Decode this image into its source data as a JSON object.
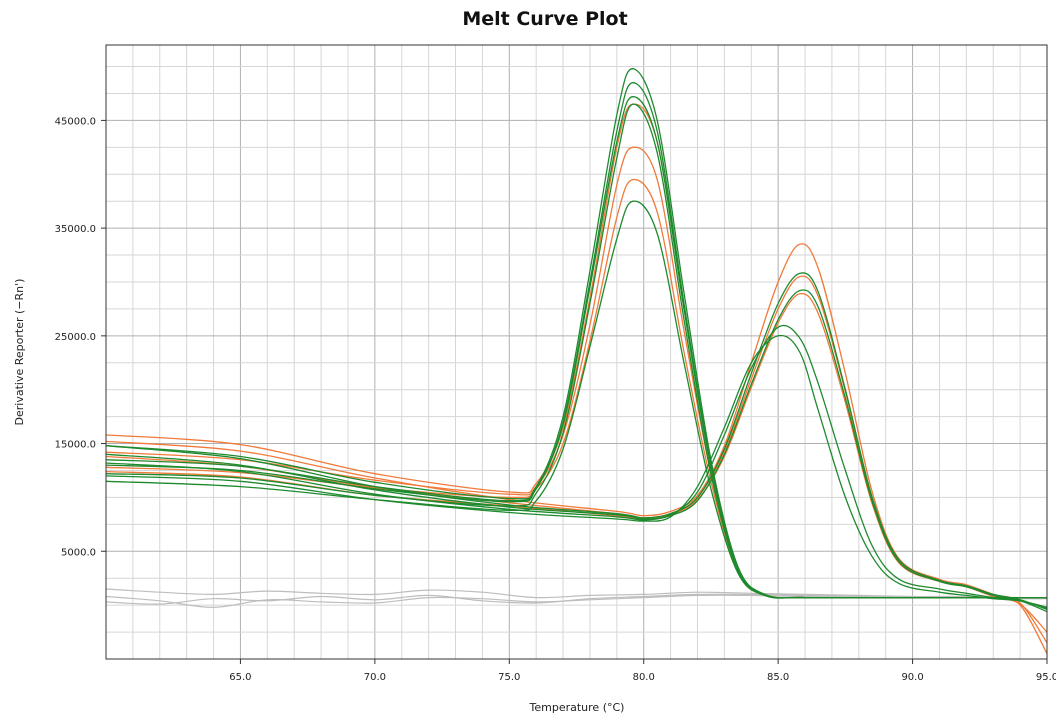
{
  "chart_data": {
    "type": "line",
    "title": "Melt Curve Plot",
    "xlabel": "Temperature (°C)",
    "ylabel": "Derivative Reporter (−Rn')",
    "xlim": [
      60.0,
      95.0
    ],
    "ylim": [
      -5000,
      52000
    ],
    "x_ticks": [
      65.0,
      70.0,
      75.0,
      80.0,
      85.0,
      90.0,
      95.0
    ],
    "x_tick_labels": [
      "65.0",
      "70.0",
      "75.0",
      "80.0",
      "85.0",
      "90.0",
      "95.0"
    ],
    "y_ticks": [
      5000,
      15000,
      25000,
      35000,
      45000
    ],
    "y_tick_labels": [
      "5000.0",
      "15000.0",
      "25000.0",
      "35000.0",
      "45000.0"
    ],
    "grid": true,
    "colors": {
      "green": "#1e8a2e",
      "orange": "#f07a3a",
      "gray": "#bdbdbd"
    },
    "series": [
      {
        "color": "green",
        "x": [
          60,
          65,
          70,
          75,
          76,
          77,
          78,
          79,
          79.6,
          80.5,
          81.5,
          82.5,
          83.5,
          84.5,
          86,
          90,
          93,
          94,
          95
        ],
        "values": [
          13000,
          12500,
          10800,
          9600,
          10800,
          17000,
          30000,
          44000,
          48500,
          44000,
          28000,
          13000,
          3500,
          1000,
          700,
          700,
          700,
          700,
          700
        ]
      },
      {
        "color": "green",
        "x": [
          60,
          65,
          70,
          75,
          76,
          77,
          78,
          79,
          79.6,
          80.5,
          81.5,
          82.5,
          83.5,
          84.5,
          86,
          90,
          93,
          94,
          95
        ],
        "values": [
          12200,
          11800,
          10200,
          9200,
          10400,
          16000,
          28000,
          41500,
          46500,
          42000,
          26500,
          12200,
          3200,
          900,
          700,
          700,
          700,
          700,
          700
        ]
      },
      {
        "color": "green",
        "x": [
          60,
          65,
          70,
          75,
          76,
          77,
          78,
          79,
          79.6,
          80.5,
          81.5,
          82.5,
          83.5,
          84.5,
          86,
          90,
          93,
          94,
          95
        ],
        "values": [
          14800,
          13800,
          11400,
          9900,
          11000,
          17500,
          31000,
          45500,
          49800,
          45000,
          29000,
          13500,
          3600,
          1000,
          700,
          700,
          700,
          700,
          700
        ]
      },
      {
        "color": "green",
        "x": [
          60,
          65,
          70,
          75,
          76,
          77,
          78,
          79,
          79.6,
          80.5,
          81.5,
          82.5,
          83.5,
          84.5,
          86,
          90,
          93,
          94,
          95
        ],
        "values": [
          11500,
          11000,
          9800,
          8800,
          9700,
          14500,
          24000,
          34000,
          37500,
          34500,
          22500,
          10800,
          3000,
          900,
          700,
          700,
          700,
          700,
          700
        ]
      },
      {
        "color": "green",
        "x": [
          60,
          65,
          70,
          75,
          76,
          77,
          78,
          79,
          79.6,
          80.5,
          81.5,
          82.5,
          83.5,
          84.5,
          86,
          90,
          93,
          94,
          95
        ],
        "values": [
          13500,
          12900,
          11000,
          9700,
          10900,
          16800,
          29500,
          43000,
          47200,
          43000,
          27500,
          12800,
          3400,
          950,
          700,
          700,
          700,
          700,
          700
        ]
      },
      {
        "color": "orange",
        "x": [
          60,
          65,
          70,
          75,
          76,
          77,
          78,
          79,
          79.6,
          80.5,
          81.5,
          82.5,
          83.5,
          84.5,
          86,
          90,
          93,
          94,
          95
        ],
        "values": [
          15800,
          14900,
          12200,
          10500,
          11300,
          16500,
          28500,
          42500,
          46500,
          43000,
          27500,
          13000,
          3500,
          1000,
          700,
          700,
          700,
          700,
          700
        ]
      },
      {
        "color": "orange",
        "x": [
          60,
          65,
          70,
          75,
          76,
          77,
          78,
          79,
          79.6,
          80.5,
          81.5,
          82.5,
          83.5,
          84.5,
          86,
          90,
          93,
          94,
          95
        ],
        "values": [
          14200,
          13500,
          11600,
          10300,
          11000,
          15800,
          26000,
          39000,
          42500,
          39500,
          25500,
          12200,
          3300,
          950,
          700,
          700,
          700,
          700,
          700
        ]
      },
      {
        "color": "orange",
        "x": [
          60,
          65,
          70,
          75,
          76,
          77,
          78,
          79,
          79.6,
          80.5,
          81.5,
          82.5,
          83.5,
          84.5,
          86,
          90,
          93,
          94,
          95
        ],
        "values": [
          12800,
          12300,
          10900,
          10000,
          10800,
          15000,
          24500,
          36000,
          39500,
          36500,
          23500,
          11500,
          3100,
          900,
          700,
          700,
          700,
          700,
          700
        ]
      },
      {
        "color": "green",
        "x": [
          60,
          65,
          70,
          75,
          79,
          80,
          81,
          82,
          83,
          84,
          85,
          85.8,
          86.5,
          87.5,
          88.5,
          89.5,
          91,
          92,
          93,
          94,
          95
        ],
        "values": [
          14800,
          13600,
          11000,
          9300,
          8500,
          8100,
          8500,
          10000,
          14500,
          21500,
          28000,
          30800,
          29000,
          20000,
          10000,
          4200,
          2300,
          1800,
          1000,
          500,
          -400
        ]
      },
      {
        "color": "green",
        "x": [
          60,
          65,
          70,
          75,
          79,
          80,
          81,
          82,
          83,
          84,
          85,
          85.8,
          86.5,
          87.5,
          88.5,
          89.5,
          91,
          92,
          93,
          94,
          95
        ],
        "values": [
          13200,
          12400,
          10300,
          8900,
          8200,
          7900,
          8300,
          9700,
          14000,
          20500,
          26500,
          29200,
          27600,
          19200,
          9600,
          4000,
          2200,
          1700,
          900,
          400,
          -600
        ]
      },
      {
        "color": "green",
        "x": [
          60,
          65,
          70,
          75,
          79,
          80,
          81,
          82,
          83,
          84,
          85,
          85.8,
          86.5,
          87.5,
          88.5,
          89.5,
          91,
          92,
          93,
          94,
          95
        ],
        "values": [
          12000,
          11500,
          9800,
          8600,
          8000,
          7800,
          8200,
          11000,
          16500,
          22500,
          25000,
          23500,
          18000,
          10000,
          4500,
          2000,
          1200,
          900,
          600,
          400,
          -200
        ]
      },
      {
        "color": "green",
        "x": [
          60,
          65,
          70,
          75,
          79,
          80,
          81,
          82,
          83,
          84,
          85,
          85.8,
          86.5,
          87.5,
          88.5,
          89.5,
          91,
          92,
          93,
          94,
          95
        ],
        "values": [
          14000,
          13000,
          10700,
          9100,
          8400,
          8000,
          8400,
          10500,
          15800,
          22000,
          25800,
          24800,
          20500,
          12500,
          5500,
          2400,
          1500,
          1100,
          700,
          400,
          -300
        ]
      },
      {
        "color": "orange",
        "x": [
          60,
          65,
          70,
          75,
          79,
          80,
          81,
          82,
          83,
          84,
          85,
          85.8,
          86.5,
          87.5,
          88.5,
          89.5,
          91,
          92,
          93,
          94,
          95
        ],
        "values": [
          15200,
          14300,
          11800,
          9800,
          8700,
          8300,
          8700,
          10200,
          14800,
          22500,
          30000,
          33500,
          31200,
          21500,
          10500,
          4300,
          2400,
          1900,
          1000,
          200,
          -3500
        ]
      },
      {
        "color": "orange",
        "x": [
          60,
          65,
          70,
          75,
          79,
          80,
          81,
          82,
          83,
          84,
          85,
          85.8,
          86.5,
          87.5,
          88.5,
          89.5,
          91,
          92,
          93,
          94,
          95
        ],
        "values": [
          13800,
          12900,
          10900,
          9500,
          8500,
          8100,
          8500,
          10000,
          14300,
          21000,
          27500,
          30500,
          28600,
          19800,
          9800,
          4100,
          2300,
          1800,
          900,
          0,
          -4500
        ]
      },
      {
        "color": "orange",
        "x": [
          60,
          65,
          70,
          75,
          79,
          80,
          81,
          82,
          83,
          84,
          85,
          85.8,
          86.5,
          87.5,
          88.5,
          89.5,
          91,
          92,
          93,
          94,
          95
        ],
        "values": [
          12400,
          11900,
          10200,
          9200,
          8300,
          8000,
          8400,
          9800,
          13800,
          20200,
          26200,
          28900,
          27000,
          18800,
          9400,
          3900,
          2200,
          1700,
          800,
          100,
          -2500
        ]
      },
      {
        "color": "gray",
        "x": [
          60,
          62,
          64,
          66,
          68,
          70,
          72,
          74,
          76,
          78,
          80,
          82,
          84,
          86,
          88,
          90,
          92,
          94,
          95
        ],
        "values": [
          1500,
          1200,
          1000,
          1300,
          1100,
          1000,
          1400,
          1200,
          700,
          900,
          1000,
          1200,
          1100,
          1000,
          900,
          800,
          800,
          700,
          700
        ]
      },
      {
        "color": "gray",
        "x": [
          60,
          62,
          64,
          66,
          68,
          70,
          72,
          74,
          76,
          78,
          80,
          82,
          84,
          86,
          88,
          90,
          92,
          94,
          95
        ],
        "values": [
          800,
          400,
          -200,
          500,
          300,
          200,
          700,
          600,
          300,
          500,
          700,
          900,
          900,
          800,
          700,
          700,
          700,
          600,
          600
        ]
      },
      {
        "color": "gray",
        "x": [
          60,
          62,
          64,
          66,
          68,
          70,
          72,
          74,
          76,
          78,
          80,
          82,
          84,
          86,
          88,
          90,
          92,
          94,
          95
        ],
        "values": [
          300,
          100,
          600,
          400,
          800,
          500,
          900,
          400,
          200,
          600,
          800,
          1000,
          1000,
          900,
          800,
          700,
          700,
          700,
          700
        ]
      }
    ]
  }
}
